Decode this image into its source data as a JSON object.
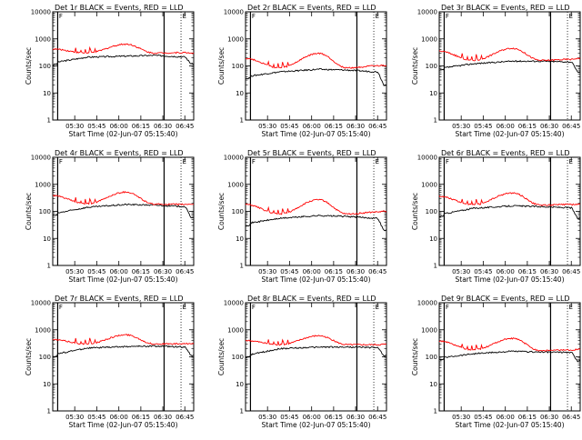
{
  "time_ticks": [
    "05:30",
    "05:45",
    "06:00",
    "06:15",
    "06:30",
    "06:45"
  ],
  "y_ticks": [
    "1",
    "10",
    "100",
    "1000",
    "10000"
  ],
  "xlabel": "Start Time (02-Jun-07 05:15:40)",
  "ylabel": "Counts/sec",
  "marker_labels": [
    "F",
    "E"
  ],
  "colors": {
    "events": "#000000",
    "lld": "#ff0000"
  },
  "chart_data": [
    {
      "type": "line",
      "title": "Det 1r BLACK = Events, RED = LLD",
      "x_range": [
        "05:15:40",
        "06:52:00"
      ],
      "yscale": "log",
      "ylim": [
        1,
        10000
      ],
      "series": [
        {
          "name": "BLACK = Events",
          "values": [
            [
              0,
              130
            ],
            [
              0.24,
              210
            ],
            [
              0.52,
              230
            ],
            [
              0.72,
              245
            ],
            [
              0.94,
              215
            ],
            [
              0.98,
              120
            ]
          ]
        },
        {
          "name": "RED = LLD",
          "values": [
            [
              0,
              420
            ],
            [
              0.24,
              300
            ],
            [
              0.52,
              640
            ],
            [
              0.72,
              300
            ],
            [
              0.94,
              310
            ],
            [
              0.98,
              300
            ]
          ]
        }
      ]
    },
    {
      "type": "line",
      "title": "Det 2r BLACK = Events, RED = LLD",
      "x_range": [
        "05:15:40",
        "06:52:00"
      ],
      "yscale": "log",
      "ylim": [
        1,
        10000
      ],
      "series": [
        {
          "name": "BLACK = Events",
          "values": [
            [
              0,
              40
            ],
            [
              0.24,
              60
            ],
            [
              0.52,
              75
            ],
            [
              0.72,
              70
            ],
            [
              0.94,
              60
            ],
            [
              0.98,
              20
            ]
          ]
        },
        {
          "name": "RED = LLD",
          "values": [
            [
              0,
              190
            ],
            [
              0.24,
              85
            ],
            [
              0.52,
              290
            ],
            [
              0.72,
              85
            ],
            [
              0.94,
              100
            ],
            [
              0.98,
              105
            ]
          ]
        }
      ]
    },
    {
      "type": "line",
      "title": "Det 3r BLACK = Events, RED = LLD",
      "x_range": [
        "05:15:40",
        "06:52:00"
      ],
      "yscale": "log",
      "ylim": [
        1,
        10000
      ],
      "series": [
        {
          "name": "BLACK = Events",
          "values": [
            [
              0,
              80
            ],
            [
              0.24,
              120
            ],
            [
              0.52,
              150
            ],
            [
              0.72,
              150
            ],
            [
              0.94,
              140
            ],
            [
              0.98,
              60
            ]
          ]
        },
        {
          "name": "RED = LLD",
          "values": [
            [
              0,
              350
            ],
            [
              0.24,
              160
            ],
            [
              0.52,
              450
            ],
            [
              0.72,
              160
            ],
            [
              0.94,
              175
            ],
            [
              0.98,
              190
            ]
          ]
        }
      ]
    },
    {
      "type": "line",
      "title": "Det 4r BLACK = Events, RED = LLD",
      "x_range": [
        "05:15:40",
        "06:52:00"
      ],
      "yscale": "log",
      "ylim": [
        1,
        10000
      ],
      "series": [
        {
          "name": "BLACK = Events",
          "values": [
            [
              0,
              80
            ],
            [
              0.24,
              140
            ],
            [
              0.52,
              180
            ],
            [
              0.72,
              170
            ],
            [
              0.94,
              150
            ],
            [
              0.98,
              60
            ]
          ]
        },
        {
          "name": "RED = LLD",
          "values": [
            [
              0,
              380
            ],
            [
              0.24,
              190
            ],
            [
              0.52,
              520
            ],
            [
              0.72,
              185
            ],
            [
              0.94,
              180
            ],
            [
              0.98,
              185
            ]
          ]
        }
      ]
    },
    {
      "type": "line",
      "title": "Det 5r BLACK = Events, RED = LLD",
      "x_range": [
        "05:15:40",
        "06:52:00"
      ],
      "yscale": "log",
      "ylim": [
        1,
        10000
      ],
      "series": [
        {
          "name": "BLACK = Events",
          "values": [
            [
              0,
              35
            ],
            [
              0.24,
              55
            ],
            [
              0.52,
              70
            ],
            [
              0.72,
              65
            ],
            [
              0.94,
              55
            ],
            [
              0.98,
              20
            ]
          ]
        },
        {
          "name": "RED = LLD",
          "values": [
            [
              0,
              180
            ],
            [
              0.24,
              80
            ],
            [
              0.52,
              270
            ],
            [
              0.72,
              80
            ],
            [
              0.94,
              95
            ],
            [
              0.98,
              100
            ]
          ]
        }
      ]
    },
    {
      "type": "line",
      "title": "Det 6r BLACK = Events, RED = LLD",
      "x_range": [
        "05:15:40",
        "06:52:00"
      ],
      "yscale": "log",
      "ylim": [
        1,
        10000
      ],
      "series": [
        {
          "name": "BLACK = Events",
          "values": [
            [
              0,
              75
            ],
            [
              0.24,
              130
            ],
            [
              0.52,
              160
            ],
            [
              0.72,
              150
            ],
            [
              0.94,
              135
            ],
            [
              0.98,
              55
            ]
          ]
        },
        {
          "name": "RED = LLD",
          "values": [
            [
              0,
              360
            ],
            [
              0.24,
              175
            ],
            [
              0.52,
              480
            ],
            [
              0.72,
              170
            ],
            [
              0.94,
              180
            ],
            [
              0.98,
              185
            ]
          ]
        }
      ]
    },
    {
      "type": "line",
      "title": "Det 7r BLACK = Events, RED = LLD",
      "x_range": [
        "05:15:40",
        "06:52:00"
      ],
      "yscale": "log",
      "ylim": [
        1,
        10000
      ],
      "series": [
        {
          "name": "BLACK = Events",
          "values": [
            [
              0,
              120
            ],
            [
              0.24,
              210
            ],
            [
              0.52,
              240
            ],
            [
              0.72,
              250
            ],
            [
              0.94,
              230
            ],
            [
              0.98,
              110
            ]
          ]
        },
        {
          "name": "RED = LLD",
          "values": [
            [
              0,
              430
            ],
            [
              0.24,
              300
            ],
            [
              0.52,
              650
            ],
            [
              0.72,
              300
            ],
            [
              0.94,
              300
            ],
            [
              0.98,
              310
            ]
          ]
        }
      ]
    },
    {
      "type": "line",
      "title": "Det 8r BLACK = Events, RED = LLD",
      "x_range": [
        "05:15:40",
        "06:52:00"
      ],
      "yscale": "log",
      "ylim": [
        1,
        10000
      ],
      "series": [
        {
          "name": "BLACK = Events",
          "values": [
            [
              0,
              110
            ],
            [
              0.24,
              200
            ],
            [
              0.52,
              230
            ],
            [
              0.72,
              230
            ],
            [
              0.94,
              220
            ],
            [
              0.98,
              110
            ]
          ]
        },
        {
          "name": "RED = LLD",
          "values": [
            [
              0,
              400
            ],
            [
              0.24,
              280
            ],
            [
              0.52,
              600
            ],
            [
              0.72,
              280
            ],
            [
              0.94,
              280
            ],
            [
              0.98,
              290
            ]
          ]
        }
      ]
    },
    {
      "type": "line",
      "title": "Det 9r BLACK = Events, RED = LLD",
      "x_range": [
        "05:15:40",
        "06:52:00"
      ],
      "yscale": "log",
      "ylim": [
        1,
        10000
      ],
      "series": [
        {
          "name": "BLACK = Events",
          "values": [
            [
              0,
              90
            ],
            [
              0.24,
              130
            ],
            [
              0.52,
              160
            ],
            [
              0.72,
              150
            ],
            [
              0.94,
              145
            ],
            [
              0.98,
              70
            ]
          ]
        },
        {
          "name": "RED = LLD",
          "values": [
            [
              0,
              380
            ],
            [
              0.24,
              180
            ],
            [
              0.52,
              480
            ],
            [
              0.72,
              170
            ],
            [
              0.94,
              180
            ],
            [
              0.98,
              190
            ]
          ]
        }
      ]
    }
  ]
}
